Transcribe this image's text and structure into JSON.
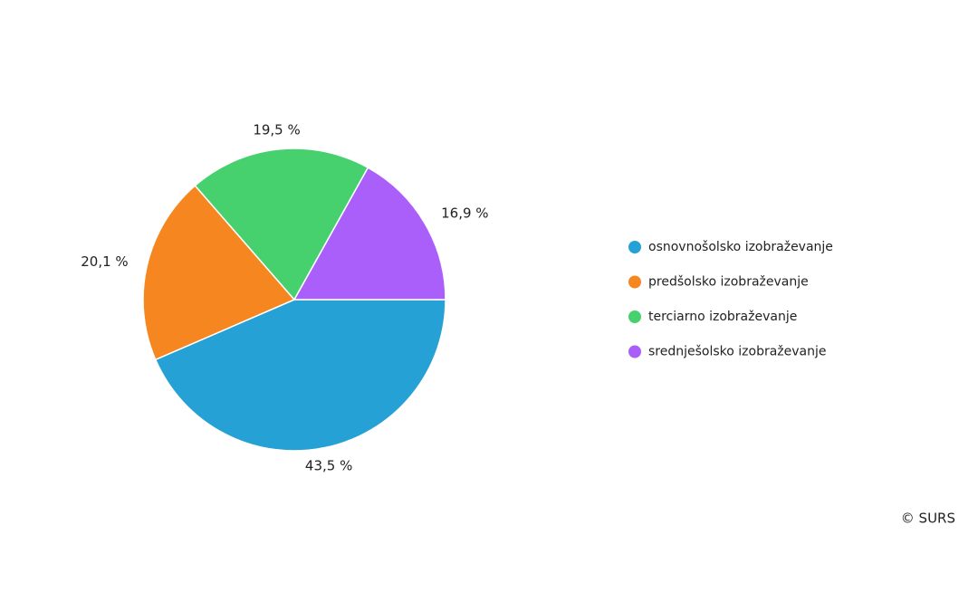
{
  "chart_data": {
    "type": "pie",
    "categories": [
      "osnovnošolsko izobraževanje",
      "predšolsko izobraževanje",
      "terciarno izobraževanje",
      "srednješolsko izobraževanje"
    ],
    "values": [
      43.5,
      20.1,
      19.5,
      16.9
    ],
    "value_labels": [
      "43,5 %",
      "20,1 %",
      "19,5 %",
      "16,9 %"
    ],
    "colors": [
      "#26a1d5",
      "#f6861f",
      "#46d16e",
      "#ab5ffa"
    ],
    "legend": "right",
    "credit": "© SURS"
  }
}
